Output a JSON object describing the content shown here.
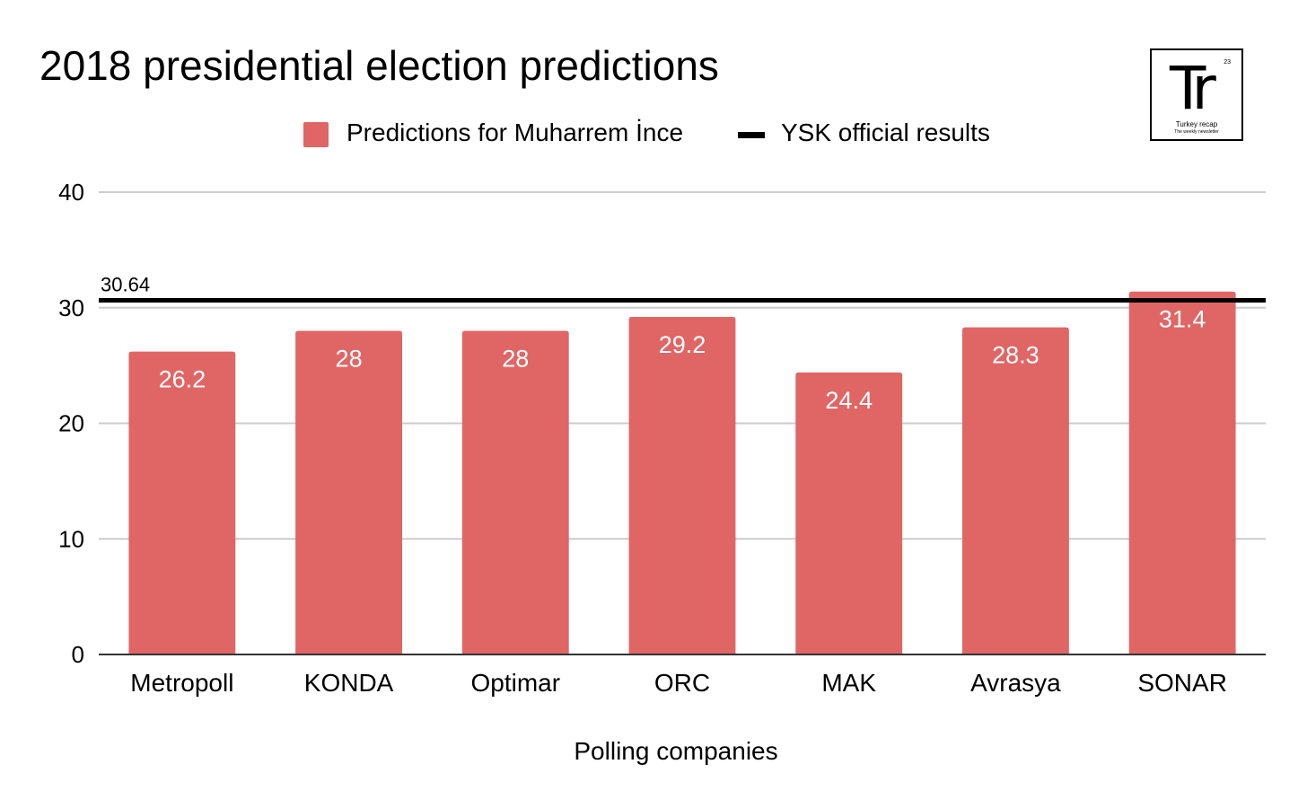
{
  "chart_data": {
    "type": "bar",
    "title": "2018 presidential election predictions",
    "xlabel": "Polling companies",
    "ylabel": "",
    "categories": [
      "Metropoll",
      "KONDA",
      "Optimar",
      "ORC",
      "MAK",
      "Avrasya",
      "SONAR"
    ],
    "series": [
      {
        "name": "Predictions for Muharrem İnce",
        "values": [
          26.2,
          28,
          28,
          29.2,
          24.4,
          28.3,
          31.4
        ],
        "color": "#e06666"
      }
    ],
    "value_labels": [
      "26.2",
      "28",
      "28",
      "29.2",
      "24.4",
      "28.3",
      "31.4"
    ],
    "reference_line": {
      "name": "YSK official results",
      "value": 30.64,
      "label": "30.64",
      "color": "#000000"
    },
    "ylim": [
      0,
      40
    ],
    "yticks": [
      0,
      10,
      20,
      30,
      40
    ],
    "ytick_labels": [
      "0",
      "10",
      "20",
      "30",
      "40"
    ],
    "grid": true,
    "legend_position": "top-center"
  },
  "logo": {
    "mark": "Tr",
    "number": "23",
    "name": "Turkey recap",
    "tagline": "The weekly newsletter"
  }
}
